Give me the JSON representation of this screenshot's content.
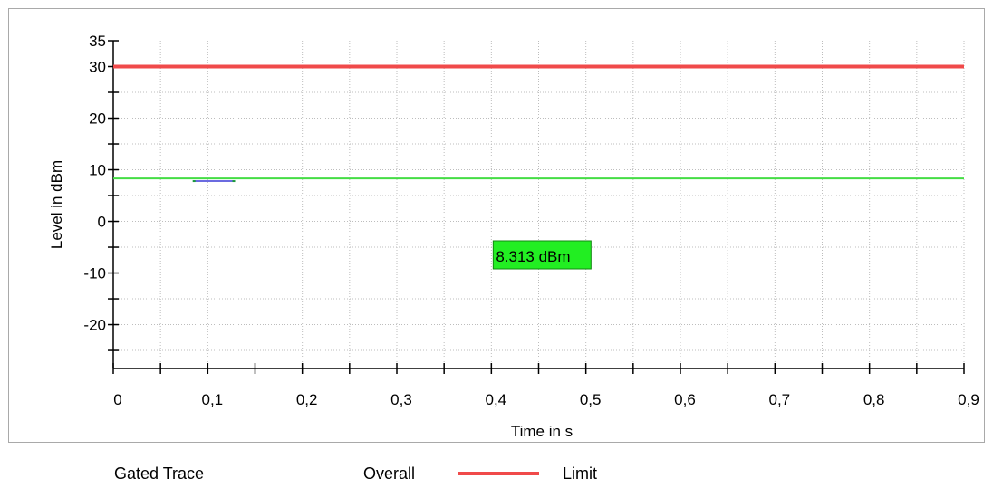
{
  "chart_data": {
    "type": "line",
    "xlabel": "Time in s",
    "ylabel": "Level in dBm",
    "xlim": [
      0,
      0.9
    ],
    "ylim": [
      -28.5,
      35
    ],
    "x_ticks": [
      {
        "value": 0,
        "label": "0"
      },
      {
        "value": 0.1,
        "label": "0,1"
      },
      {
        "value": 0.2,
        "label": "0,2"
      },
      {
        "value": 0.3,
        "label": "0,3"
      },
      {
        "value": 0.4,
        "label": "0,4"
      },
      {
        "value": 0.5,
        "label": "0,5"
      },
      {
        "value": 0.6,
        "label": "0,6"
      },
      {
        "value": 0.7,
        "label": "0,7"
      },
      {
        "value": 0.8,
        "label": "0,8"
      },
      {
        "value": 0.9,
        "label": "0,9"
      }
    ],
    "y_ticks": [
      {
        "value": 35,
        "label": "35"
      },
      {
        "value": 30,
        "label": "30"
      },
      {
        "value": 20,
        "label": "20"
      },
      {
        "value": 10,
        "label": "10"
      },
      {
        "value": 0,
        "label": "0"
      },
      {
        "value": -10,
        "label": "-10"
      },
      {
        "value": -20,
        "label": "-20"
      }
    ],
    "grid": true,
    "series": [
      {
        "name": "Gated Trace",
        "color": "#3a3ad6",
        "x": [
          0.085,
          0.127
        ],
        "y": [
          7.8,
          7.8
        ]
      },
      {
        "name": "Overall",
        "color": "#44dd44",
        "x": [
          0,
          0.9
        ],
        "y": [
          8.313,
          8.313
        ]
      },
      {
        "name": "Limit",
        "color": "#f04a4a",
        "x": [
          0,
          0.9
        ],
        "y": [
          30,
          30
        ]
      }
    ],
    "annotation": {
      "text": "8.313 dBm",
      "x": 0.4,
      "y": -6,
      "color": "#22ee22"
    }
  },
  "legend": [
    {
      "name": "Gated Trace",
      "color": "#3a3ad6",
      "width": 1
    },
    {
      "name": "Overall",
      "color": "#44dd44",
      "width": 1
    },
    {
      "name": "Limit",
      "color": "#f04a4a",
      "width": 4
    }
  ]
}
